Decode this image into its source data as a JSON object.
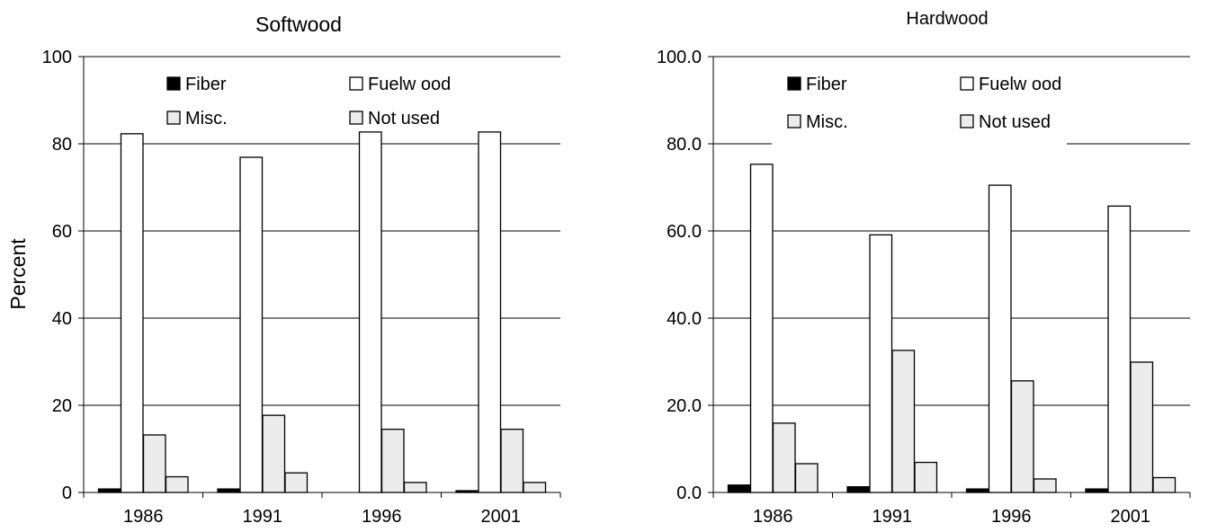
{
  "figure": {
    "ylabel": "Percent"
  },
  "chart_data": [
    {
      "type": "bar",
      "title": "Softwood",
      "xlabel": "",
      "ylabel": "Percent",
      "categories": [
        "1986",
        "1991",
        "1996",
        "2001"
      ],
      "ylim": [
        0,
        100
      ],
      "yticks": [
        "0",
        "20",
        "40",
        "60",
        "80",
        "100"
      ],
      "ytick_values": [
        0,
        20,
        40,
        60,
        80,
        100
      ],
      "grid": true,
      "legend_position": "top",
      "series": [
        {
          "name": "Fiber",
          "color": "#000000",
          "values": [
            0.8,
            0.8,
            0.0,
            0.4
          ]
        },
        {
          "name": "Fuelw ood",
          "color": "#ffffff",
          "values": [
            82.3,
            76.9,
            82.7,
            82.7
          ]
        },
        {
          "name": "Misc.",
          "color": "#ececec",
          "values": [
            13.2,
            17.7,
            14.5,
            14.5
          ]
        },
        {
          "name": "Not used",
          "color": "#ececec",
          "values": [
            3.6,
            4.5,
            2.3,
            2.3
          ]
        }
      ]
    },
    {
      "type": "bar",
      "title": "Hardwood",
      "xlabel": "",
      "ylabel": "",
      "categories": [
        "1986",
        "1991",
        "1996",
        "2001"
      ],
      "ylim": [
        0,
        100
      ],
      "yticks": [
        "0.0",
        "20.0",
        "40.0",
        "60.0",
        "80.0",
        "100.0"
      ],
      "ytick_values": [
        0,
        20,
        40,
        60,
        80,
        100
      ],
      "grid": true,
      "legend_position": "top",
      "series": [
        {
          "name": "Fiber",
          "color": "#000000",
          "values": [
            1.7,
            1.3,
            0.8,
            0.8
          ]
        },
        {
          "name": "Fuelw ood",
          "color": "#ffffff",
          "values": [
            75.3,
            59.1,
            70.5,
            65.7
          ]
        },
        {
          "name": "Misc.",
          "color": "#ececec",
          "values": [
            15.9,
            32.6,
            25.6,
            29.9
          ]
        },
        {
          "name": "Not used",
          "color": "#ececec",
          "values": [
            6.6,
            6.9,
            3.1,
            3.4
          ]
        }
      ]
    }
  ]
}
